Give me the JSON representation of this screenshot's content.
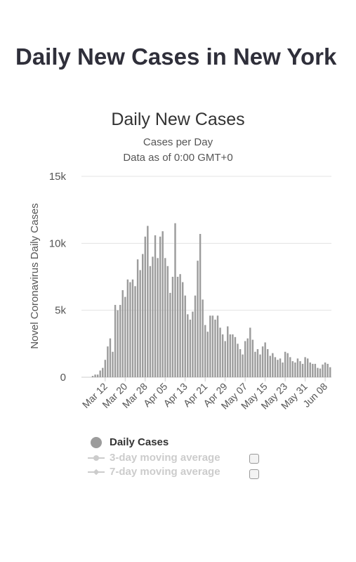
{
  "page": {
    "title": "Daily New Cases in New York"
  },
  "chart_data": {
    "type": "bar",
    "title": "Daily New Cases",
    "subtitle": "Cases per Day",
    "subtitle2": "Data as of 0:00 GMT+0",
    "ylabel": "Novel Coronavirus Daily Cases",
    "xlabel": "",
    "ylim": [
      0,
      15000
    ],
    "yticks": [
      0,
      5000,
      10000,
      15000
    ],
    "ytick_labels": [
      "0",
      "5k",
      "10k",
      "15k"
    ],
    "grid": true,
    "bar_color": "#9c9c9c",
    "categories": [
      "Mar 03",
      "Mar 04",
      "Mar 05",
      "Mar 06",
      "Mar 07",
      "Mar 08",
      "Mar 09",
      "Mar 10",
      "Mar 11",
      "Mar 12",
      "Mar 13",
      "Mar 14",
      "Mar 15",
      "Mar 16",
      "Mar 17",
      "Mar 18",
      "Mar 19",
      "Mar 20",
      "Mar 21",
      "Mar 22",
      "Mar 23",
      "Mar 24",
      "Mar 25",
      "Mar 26",
      "Mar 27",
      "Mar 28",
      "Mar 29",
      "Mar 30",
      "Mar 31",
      "Apr 01",
      "Apr 02",
      "Apr 03",
      "Apr 04",
      "Apr 05",
      "Apr 06",
      "Apr 07",
      "Apr 08",
      "Apr 09",
      "Apr 10",
      "Apr 11",
      "Apr 12",
      "Apr 13",
      "Apr 14",
      "Apr 15",
      "Apr 16",
      "Apr 17",
      "Apr 18",
      "Apr 19",
      "Apr 20",
      "Apr 21",
      "Apr 22",
      "Apr 23",
      "Apr 24",
      "Apr 25",
      "Apr 26",
      "Apr 27",
      "Apr 28",
      "Apr 29",
      "Apr 30",
      "May 01",
      "May 02",
      "May 03",
      "May 04",
      "May 05",
      "May 06",
      "May 07",
      "May 08",
      "May 09",
      "May 10",
      "May 11",
      "May 12",
      "May 13",
      "May 14",
      "May 15",
      "May 16",
      "May 17",
      "May 18",
      "May 19",
      "May 20",
      "May 21",
      "May 22",
      "May 23",
      "May 24",
      "May 25",
      "May 26",
      "May 27",
      "May 28",
      "May 29",
      "May 30",
      "May 31",
      "Jun 01",
      "Jun 02",
      "Jun 03",
      "Jun 04",
      "Jun 05",
      "Jun 06",
      "Jun 07",
      "Jun 08",
      "Jun 09",
      "Jun 10"
    ],
    "x_tick_labels": [
      "Mar 12",
      "Mar 20",
      "Mar 28",
      "Apr 05",
      "Apr 13",
      "Apr 21",
      "Apr 29",
      "May 07",
      "May 15",
      "May 23",
      "May 31",
      "Jun 08"
    ],
    "series": [
      {
        "name": "Daily Cases",
        "values": [
          0,
          0,
          0,
          0,
          100,
          200,
          200,
          500,
          700,
          1300,
          2300,
          2900,
          1900,
          5400,
          5000,
          5400,
          6500,
          6000,
          7300,
          7100,
          7300,
          6800,
          8800,
          8000,
          9200,
          10500,
          11300,
          8300,
          9000,
          10600,
          8900,
          10500,
          10900,
          8900,
          8300,
          6300,
          7500,
          11500,
          7500,
          7700,
          7100,
          6100,
          4700,
          4300,
          4900,
          6100,
          8700,
          10700,
          5800,
          3900,
          3400,
          4600,
          4600,
          4300,
          4600,
          3700,
          3200,
          2700,
          3800,
          3200,
          3200,
          3000,
          2500,
          2100,
          1700,
          2700,
          2900,
          3700,
          2800,
          1900,
          2100,
          1700,
          2300,
          2600,
          2100,
          1600,
          1800,
          1500,
          1300,
          1400,
          1100,
          1900,
          1800,
          1500,
          1200,
          1100,
          1400,
          1200,
          1000,
          1500,
          1400,
          1100,
          1000,
          1000,
          700,
          650,
          950,
          1100,
          1000,
          750
        ]
      }
    ],
    "legend": [
      {
        "name": "Daily Cases",
        "active": true
      },
      {
        "name": "3-day moving average",
        "active": false
      },
      {
        "name": "7-day moving average",
        "active": false
      }
    ]
  }
}
